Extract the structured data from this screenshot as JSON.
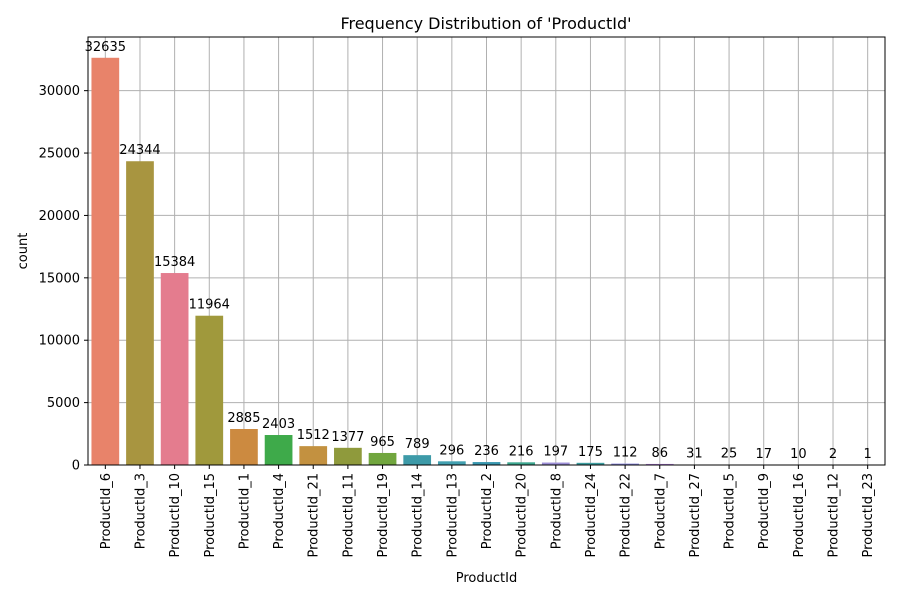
{
  "chart_data": {
    "type": "bar",
    "title": "Frequency Distribution of 'ProductId'",
    "xlabel": "ProductId",
    "ylabel": "count",
    "ylim": [
      0,
      34300
    ],
    "yticks": [
      0,
      5000,
      10000,
      15000,
      20000,
      25000,
      30000
    ],
    "grid": true,
    "categories": [
      "ProductId_6",
      "ProductId_3",
      "ProductId_10",
      "ProductId_15",
      "ProductId_1",
      "ProductId_4",
      "ProductId_21",
      "ProductId_11",
      "ProductId_19",
      "ProductId_14",
      "ProductId_13",
      "ProductId_2",
      "ProductId_20",
      "ProductId_8",
      "ProductId_24",
      "ProductId_22",
      "ProductId_7",
      "ProductId_27",
      "ProductId_5",
      "ProductId_9",
      "ProductId_16",
      "ProductId_12",
      "ProductId_23"
    ],
    "values": [
      32635,
      24344,
      15384,
      11964,
      2885,
      2403,
      1512,
      1377,
      965,
      789,
      296,
      236,
      216,
      197,
      175,
      112,
      86,
      31,
      25,
      17,
      10,
      2,
      1
    ],
    "colors": [
      "#e8836a",
      "#a89540",
      "#e47c8e",
      "#a0993c",
      "#cc8a40",
      "#3eaa4a",
      "#c39140",
      "#8f9a3c",
      "#71a63e",
      "#3d9aa8",
      "#42a0b0",
      "#3a98b0",
      "#3ea890",
      "#9d8fd8",
      "#3e9ea0",
      "#8a88e0",
      "#b47fe0",
      "#3b9ca0",
      "#3ea090",
      "#4a9cd0",
      "#6a90e0",
      "#d07ab8",
      "#dc70c0"
    ]
  }
}
